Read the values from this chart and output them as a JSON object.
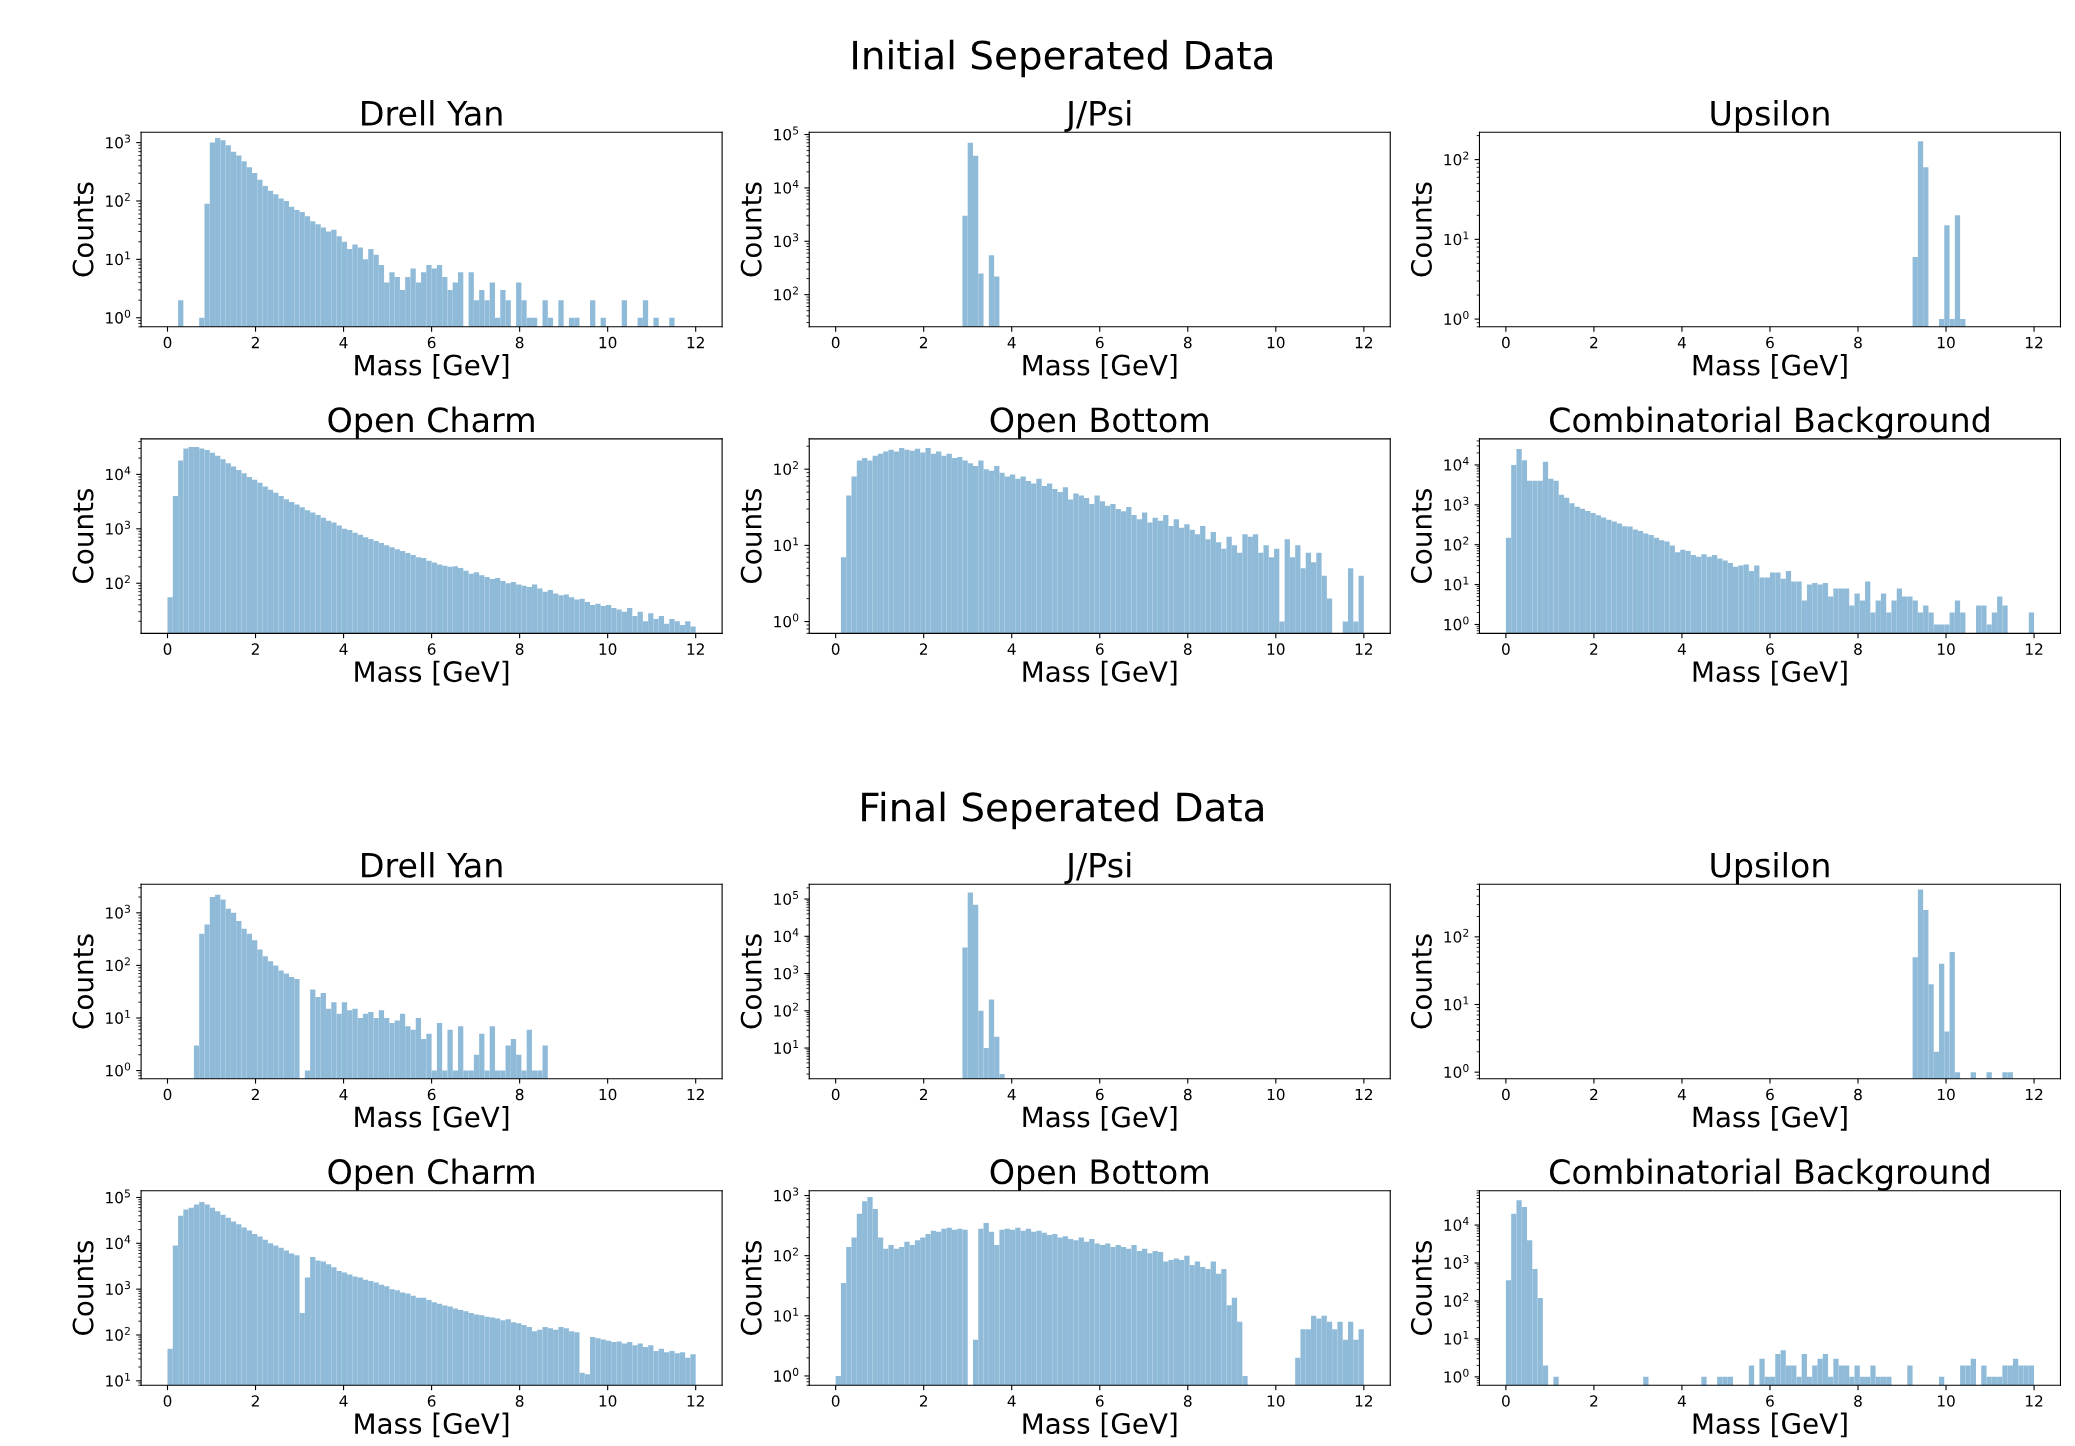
{
  "chart_data": [
    {
      "type": "histogram",
      "title": "Drell Yan",
      "xlabel": "Mass [GeV]",
      "ylabel": "Counts",
      "annotations": [
        "Initial Seperated Data"
      ],
      "color": "#8fbbd9",
      "log": "y",
      "xlim": [
        -0.6,
        12.6
      ],
      "xticks": [
        0,
        2,
        4,
        6,
        8,
        10,
        12
      ],
      "ylim": [
        0.7,
        1500
      ],
      "yticks": [
        {
          "value": 1,
          "label": "10$^{0}$"
        },
        {
          "value": 10,
          "label": "10$^{1}$"
        },
        {
          "value": 100,
          "label": "10$^{2}$"
        },
        {
          "value": 1000,
          "label": "10$^{3}$"
        }
      ],
      "bins": [
        0,
        0.12,
        0.24,
        0.36,
        0.48,
        0.6,
        0.72,
        0.84,
        0.96,
        1.08,
        1.2,
        1.32,
        1.44,
        1.56,
        1.68,
        1.8,
        1.92,
        2.04,
        2.16,
        2.28,
        2.4,
        2.52,
        2.64,
        2.76,
        2.88,
        3,
        3.12,
        3.24,
        3.36,
        3.48,
        3.6,
        3.72,
        3.84,
        3.96,
        4.08,
        4.2,
        4.32,
        4.44,
        4.56,
        4.68,
        4.8,
        4.92,
        5.04,
        5.16,
        5.28,
        5.4,
        5.52,
        5.64,
        5.76,
        5.88,
        6,
        6.12,
        6.24,
        6.36,
        6.48,
        6.6,
        6.72,
        6.84,
        6.96,
        7.08,
        7.2,
        7.32,
        7.44,
        7.56,
        7.68,
        7.8,
        7.92,
        8.04,
        8.16,
        8.28,
        8.4,
        8.52,
        8.64,
        8.76,
        8.88,
        9,
        9.12,
        9.24,
        9.36,
        9.48,
        9.6,
        9.72,
        9.84,
        9.96,
        10.08,
        10.2,
        10.32,
        10.44,
        10.56,
        10.68,
        10.8,
        10.92,
        11.04,
        11.16,
        11.28,
        11.4,
        11.52,
        11.64,
        11.76,
        11.88,
        12
      ],
      "values": [
        null,
        null,
        2,
        null,
        null,
        null,
        1,
        90,
        1000,
        1200,
        1100,
        900,
        700,
        600,
        480,
        380,
        300,
        230,
        180,
        150,
        130,
        110,
        100,
        80,
        70,
        65,
        55,
        45,
        40,
        35,
        30,
        32,
        25,
        20,
        15,
        18,
        16,
        10,
        15,
        12,
        8,
        4,
        6,
        5,
        3,
        5,
        7,
        4,
        6,
        8,
        7,
        8,
        5,
        3,
        4,
        6,
        null,
        6,
        2,
        3,
        2,
        4,
        1,
        3,
        2,
        null,
        4,
        2,
        1,
        1,
        null,
        2,
        1,
        null,
        2,
        null,
        1,
        1,
        null,
        null,
        2,
        null,
        1,
        null,
        null,
        null,
        2,
        null,
        null,
        1,
        2,
        null,
        1,
        null,
        null,
        1,
        null,
        null,
        null,
        null
      ]
    },
    {
      "type": "histogram",
      "title": "J/Psi",
      "xlabel": "Mass [GeV]",
      "ylabel": "Counts",
      "color": "#8fbbd9",
      "log": "y",
      "xlim": [
        -0.6,
        12.6
      ],
      "xticks": [
        0,
        2,
        4,
        6,
        8,
        10,
        12
      ],
      "ylim": [
        25,
        110000
      ],
      "yticks": [
        {
          "value": 100,
          "label": "10$^{2}$"
        },
        {
          "value": 1000,
          "label": "10$^{3}$"
        },
        {
          "value": 10000,
          "label": "10$^{4}$"
        },
        {
          "value": 100000,
          "label": "10$^{5}$"
        }
      ],
      "bins": [
        2.88,
        3,
        3.12,
        3.24,
        3.36,
        3.48,
        3.6,
        3.72
      ],
      "values": [
        3000,
        70000,
        40000,
        250,
        null,
        550,
        220
      ]
    },
    {
      "type": "histogram",
      "title": "Upsilon",
      "xlabel": "Mass [GeV]",
      "ylabel": "Counts",
      "color": "#8fbbd9",
      "log": "y",
      "xlim": [
        -0.6,
        12.6
      ],
      "xticks": [
        0,
        2,
        4,
        6,
        8,
        10,
        12
      ],
      "ylim": [
        0.8,
        220
      ],
      "yticks": [
        {
          "value": 1,
          "label": "10$^{0}$"
        },
        {
          "value": 10,
          "label": "10$^{1}$"
        },
        {
          "value": 100,
          "label": "10$^{2}$"
        }
      ],
      "bins": [
        9.24,
        9.36,
        9.48,
        9.6,
        9.72,
        9.84,
        9.96,
        10.08,
        10.2,
        10.32,
        10.44
      ],
      "values": [
        6,
        170,
        80,
        null,
        null,
        1,
        15,
        1,
        20,
        1
      ]
    },
    {
      "type": "histogram",
      "title": "Open Charm",
      "xlabel": "Mass [GeV]",
      "ylabel": "Counts",
      "color": "#8fbbd9",
      "log": "y",
      "xlim": [
        -0.6,
        12.6
      ],
      "xticks": [
        0,
        2,
        4,
        6,
        8,
        10,
        12
      ],
      "ylim": [
        12,
        45000
      ],
      "yticks": [
        {
          "value": 100,
          "label": "10$^{2}$"
        },
        {
          "value": 1000,
          "label": "10$^{3}$"
        },
        {
          "value": 10000,
          "label": "10$^{4}$"
        }
      ],
      "bins": [
        0,
        0.12,
        0.24,
        0.36,
        0.48,
        0.6,
        0.72,
        0.84,
        0.96,
        1.08,
        1.2,
        1.32,
        1.44,
        1.56,
        1.68,
        1.8,
        1.92,
        2.04,
        2.16,
        2.28,
        2.4,
        2.52,
        2.64,
        2.76,
        2.88,
        3,
        3.12,
        3.24,
        3.36,
        3.48,
        3.6,
        3.72,
        3.84,
        3.96,
        4.08,
        4.2,
        4.32,
        4.44,
        4.56,
        4.68,
        4.8,
        4.92,
        5.04,
        5.16,
        5.28,
        5.4,
        5.52,
        5.64,
        5.76,
        5.88,
        6,
        6.12,
        6.24,
        6.36,
        6.48,
        6.6,
        6.72,
        6.84,
        6.96,
        7.08,
        7.2,
        7.32,
        7.44,
        7.56,
        7.68,
        7.8,
        7.92,
        8.04,
        8.16,
        8.28,
        8.4,
        8.52,
        8.64,
        8.76,
        8.88,
        9,
        9.12,
        9.24,
        9.36,
        9.48,
        9.6,
        9.72,
        9.84,
        9.96,
        10.08,
        10.2,
        10.32,
        10.44,
        10.56,
        10.68,
        10.8,
        10.92,
        11.04,
        11.16,
        11.28,
        11.4,
        11.52,
        11.64,
        11.76,
        11.88,
        12
      ],
      "values": [
        55,
        4000,
        18000,
        30000,
        32000,
        32000,
        30000,
        28000,
        25000,
        22000,
        19000,
        16000,
        14000,
        12000,
        10500,
        9000,
        8000,
        7000,
        6000,
        5200,
        4600,
        4000,
        3500,
        3100,
        2800,
        2500,
        2200,
        2000,
        1800,
        1600,
        1400,
        1300,
        1150,
        1000,
        950,
        850,
        780,
        700,
        650,
        600,
        550,
        500,
        460,
        420,
        390,
        360,
        330,
        300,
        290,
        260,
        240,
        220,
        210,
        200,
        205,
        190,
        170,
        150,
        160,
        140,
        130,
        120,
        125,
        110,
        100,
        105,
        95,
        90,
        85,
        95,
        80,
        70,
        75,
        65,
        60,
        62,
        55,
        50,
        52,
        45,
        40,
        42,
        38,
        40,
        35,
        33,
        30,
        35,
        25,
        30,
        20,
        28,
        22,
        25,
        18,
        22,
        20,
        17,
        20,
        16
      ]
    },
    {
      "type": "histogram",
      "title": "Open Bottom",
      "xlabel": "Mass [GeV]",
      "ylabel": "Counts",
      "color": "#8fbbd9",
      "log": "y",
      "xlim": [
        -0.6,
        12.6
      ],
      "xticks": [
        0,
        2,
        4,
        6,
        8,
        10,
        12
      ],
      "ylim": [
        0.7,
        250
      ],
      "yticks": [
        {
          "value": 1,
          "label": "10$^{0}$"
        },
        {
          "value": 10,
          "label": "10$^{1}$"
        },
        {
          "value": 100,
          "label": "10$^{2}$"
        }
      ],
      "bins": [
        0,
        0.12,
        0.24,
        0.36,
        0.48,
        0.6,
        0.72,
        0.84,
        0.96,
        1.08,
        1.2,
        1.32,
        1.44,
        1.56,
        1.68,
        1.8,
        1.92,
        2.04,
        2.16,
        2.28,
        2.4,
        2.52,
        2.64,
        2.76,
        2.88,
        3,
        3.12,
        3.24,
        3.36,
        3.48,
        3.6,
        3.72,
        3.84,
        3.96,
        4.08,
        4.2,
        4.32,
        4.44,
        4.56,
        4.68,
        4.8,
        4.92,
        5.04,
        5.16,
        5.28,
        5.4,
        5.52,
        5.64,
        5.76,
        5.88,
        6,
        6.12,
        6.24,
        6.36,
        6.48,
        6.6,
        6.72,
        6.84,
        6.96,
        7.08,
        7.2,
        7.32,
        7.44,
        7.56,
        7.68,
        7.8,
        7.92,
        8.04,
        8.16,
        8.28,
        8.4,
        8.52,
        8.64,
        8.76,
        8.88,
        9,
        9.12,
        9.24,
        9.36,
        9.48,
        9.6,
        9.72,
        9.84,
        9.96,
        10.08,
        10.2,
        10.32,
        10.44,
        10.56,
        10.68,
        10.8,
        10.92,
        11.04,
        11.16,
        11.28,
        11.4,
        11.52,
        11.64,
        11.76,
        11.88,
        12
      ],
      "values": [
        null,
        7,
        45,
        80,
        130,
        140,
        130,
        150,
        160,
        170,
        180,
        170,
        190,
        180,
        175,
        185,
        165,
        190,
        160,
        170,
        150,
        160,
        140,
        145,
        130,
        120,
        110,
        130,
        100,
        95,
        110,
        90,
        80,
        85,
        75,
        80,
        70,
        65,
        75,
        60,
        65,
        55,
        50,
        58,
        40,
        48,
        45,
        42,
        35,
        45,
        38,
        33,
        35,
        30,
        28,
        32,
        25,
        22,
        27,
        20,
        23,
        21,
        25,
        18,
        22,
        17,
        19,
        16,
        14,
        18,
        12,
        15,
        11,
        9,
        13,
        10,
        8,
        14,
        13,
        14,
        8,
        10,
        7,
        9,
        1,
        12,
        7,
        10,
        5,
        8,
        6,
        8,
        4,
        2,
        null,
        null,
        1,
        5,
        1,
        4
      ]
    },
    {
      "type": "histogram",
      "title": "Combinatorial Background",
      "xlabel": "Mass [GeV]",
      "ylabel": "Counts",
      "color": "#8fbbd9",
      "log": "y",
      "xlim": [
        -0.6,
        12.6
      ],
      "xticks": [
        0,
        2,
        4,
        6,
        8,
        10,
        12
      ],
      "ylim": [
        0.6,
        45000
      ],
      "yticks": [
        {
          "value": 1,
          "label": "10$^{0}$"
        },
        {
          "value": 10,
          "label": "10$^{1}$"
        },
        {
          "value": 100,
          "label": "10$^{2}$"
        },
        {
          "value": 1000,
          "label": "10$^{3}$"
        },
        {
          "value": 10000,
          "label": "10$^{4}$"
        }
      ],
      "bins": [
        0,
        0.12,
        0.24,
        0.36,
        0.48,
        0.6,
        0.72,
        0.84,
        0.96,
        1.08,
        1.2,
        1.32,
        1.44,
        1.56,
        1.68,
        1.8,
        1.92,
        2.04,
        2.16,
        2.28,
        2.4,
        2.52,
        2.64,
        2.76,
        2.88,
        3,
        3.12,
        3.24,
        3.36,
        3.48,
        3.6,
        3.72,
        3.84,
        3.96,
        4.08,
        4.2,
        4.32,
        4.44,
        4.56,
        4.68,
        4.8,
        4.92,
        5.04,
        5.16,
        5.28,
        5.4,
        5.52,
        5.64,
        5.76,
        5.88,
        6,
        6.12,
        6.24,
        6.36,
        6.48,
        6.6,
        6.72,
        6.84,
        6.96,
        7.08,
        7.2,
        7.32,
        7.44,
        7.56,
        7.68,
        7.8,
        7.92,
        8.04,
        8.16,
        8.28,
        8.4,
        8.52,
        8.64,
        8.76,
        8.88,
        9,
        9.12,
        9.24,
        9.36,
        9.48,
        9.6,
        9.72,
        9.84,
        9.96,
        10.08,
        10.2,
        10.32,
        10.44,
        10.56,
        10.68,
        10.8,
        10.92,
        11.04,
        11.16,
        11.28,
        11.4,
        11.52,
        11.64,
        11.76,
        11.88,
        12
      ],
      "values": [
        150,
        10000,
        25000,
        13000,
        4000,
        4000,
        4000,
        12000,
        4500,
        4000,
        1800,
        1500,
        1100,
        900,
        800,
        700,
        620,
        550,
        480,
        420,
        380,
        340,
        290,
        285,
        240,
        220,
        190,
        175,
        150,
        130,
        120,
        95,
        65,
        75,
        70,
        55,
        50,
        58,
        50,
        55,
        45,
        40,
        35,
        28,
        30,
        32,
        22,
        30,
        15,
        15,
        20,
        20,
        14,
        22,
        12,
        12,
        4,
        10,
        11,
        10,
        11,
        5,
        8,
        8,
        8,
        3,
        6,
        4,
        12,
        2,
        4,
        6,
        2,
        4,
        8,
        5,
        5,
        4,
        2,
        3,
        2,
        1,
        1,
        1,
        2,
        4,
        2,
        null,
        null,
        3,
        3,
        1,
        2,
        5,
        3,
        null,
        null,
        null,
        null,
        2
      ]
    },
    {
      "type": "histogram",
      "title": "Drell Yan",
      "xlabel": "Mass [GeV]",
      "ylabel": "Counts",
      "annotations": [
        "Final Seperated Data"
      ],
      "color": "#8fbbd9",
      "log": "y",
      "xlim": [
        -0.6,
        12.6
      ],
      "xticks": [
        0,
        2,
        4,
        6,
        8,
        10,
        12
      ],
      "ylim": [
        0.7,
        3500
      ],
      "yticks": [
        {
          "value": 1,
          "label": "10$^{0}$"
        },
        {
          "value": 10,
          "label": "10$^{1}$"
        },
        {
          "value": 100,
          "label": "10$^{2}$"
        },
        {
          "value": 1000,
          "label": "10$^{3}$"
        }
      ],
      "bins": [
        0,
        0.12,
        0.24,
        0.36,
        0.48,
        0.6,
        0.72,
        0.84,
        0.96,
        1.08,
        1.2,
        1.32,
        1.44,
        1.56,
        1.68,
        1.8,
        1.92,
        2.04,
        2.16,
        2.28,
        2.4,
        2.52,
        2.64,
        2.76,
        2.88,
        3,
        3.12,
        3.24,
        3.36,
        3.48,
        3.6,
        3.72,
        3.84,
        3.96,
        4.08,
        4.2,
        4.32,
        4.44,
        4.56,
        4.68,
        4.8,
        4.92,
        5.04,
        5.16,
        5.28,
        5.4,
        5.52,
        5.64,
        5.76,
        5.88,
        6,
        6.12,
        6.24,
        6.36,
        6.48,
        6.6,
        6.72,
        6.84,
        6.96,
        7.08,
        7.2,
        7.32,
        7.44,
        7.56,
        7.68,
        7.8,
        7.92,
        8.04,
        8.16,
        8.28,
        8.4,
        8.52,
        8.64,
        8.76,
        8.88,
        9,
        9.12,
        9.24,
        9.36,
        9.48,
        9.6,
        9.72,
        9.84,
        9.96,
        10.08,
        10.2,
        10.32,
        10.44,
        10.56,
        10.68,
        10.8,
        10.92,
        11.04,
        11.16,
        11.28,
        11.4,
        11.52,
        11.64,
        11.76,
        11.88,
        12
      ],
      "values": [
        null,
        null,
        null,
        null,
        null,
        3,
        400,
        600,
        2000,
        2200,
        1800,
        1200,
        1000,
        700,
        500,
        400,
        300,
        200,
        150,
        120,
        100,
        80,
        70,
        60,
        55,
        null,
        1,
        35,
        25,
        30,
        15,
        20,
        12,
        20,
        14,
        15,
        10,
        12,
        13,
        10,
        14,
        10,
        8,
        9,
        12,
        7,
        6,
        10,
        4,
        5,
        1,
        8,
        1,
        6,
        1,
        7,
        1,
        1,
        2,
        5,
        1,
        7,
        1,
        1,
        3,
        4,
        2,
        1,
        6,
        1,
        1,
        3,
        null,
        null,
        null,
        null,
        null,
        null,
        null,
        null,
        null,
        null,
        null,
        null,
        null,
        null,
        null,
        null,
        null,
        null,
        null,
        null,
        null,
        null,
        null,
        null,
        null,
        null,
        null,
        null
      ]
    },
    {
      "type": "histogram",
      "title": "J/Psi",
      "xlabel": "Mass [GeV]",
      "ylabel": "Counts",
      "color": "#8fbbd9",
      "log": "y",
      "xlim": [
        -0.6,
        12.6
      ],
      "xticks": [
        0,
        2,
        4,
        6,
        8,
        10,
        12
      ],
      "ylim": [
        1.5,
        250000
      ],
      "yticks": [
        {
          "value": 10,
          "label": "10$^{1}$"
        },
        {
          "value": 100,
          "label": "10$^{2}$"
        },
        {
          "value": 1000,
          "label": "10$^{3}$"
        },
        {
          "value": 10000,
          "label": "10$^{4}$"
        },
        {
          "value": 100000,
          "label": "10$^{5}$"
        }
      ],
      "bins": [
        2.88,
        3,
        3.12,
        3.24,
        3.36,
        3.48,
        3.6,
        3.72,
        3.84
      ],
      "values": [
        5000,
        150000,
        70000,
        100,
        10,
        200,
        20,
        2
      ]
    },
    {
      "type": "histogram",
      "title": "Upsilon",
      "xlabel": "Mass [GeV]",
      "ylabel": "Counts",
      "color": "#8fbbd9",
      "log": "y",
      "xlim": [
        -0.6,
        12.6
      ],
      "xticks": [
        0,
        2,
        4,
        6,
        8,
        10,
        12
      ],
      "ylim": [
        0.8,
        600
      ],
      "yticks": [
        {
          "value": 1,
          "label": "10$^{0}$"
        },
        {
          "value": 10,
          "label": "10$^{1}$"
        },
        {
          "value": 100,
          "label": "10$^{2}$"
        }
      ],
      "bins": [
        9.24,
        9.36,
        9.48,
        9.6,
        9.72,
        9.84,
        9.96,
        10.08,
        10.2,
        10.32,
        10.44,
        10.56,
        10.68,
        10.8,
        10.92,
        11.04,
        11.16,
        11.28,
        11.4,
        11.52,
        11.64
      ],
      "values": [
        50,
        500,
        250,
        20,
        2,
        40,
        4,
        60,
        1,
        null,
        null,
        1,
        null,
        null,
        1,
        null,
        null,
        1,
        1,
        null
      ]
    },
    {
      "type": "histogram",
      "title": "Open Charm",
      "xlabel": "Mass [GeV]",
      "ylabel": "Counts",
      "color": "#8fbbd9",
      "log": "y",
      "xlim": [
        -0.6,
        12.6
      ],
      "xticks": [
        0,
        2,
        4,
        6,
        8,
        10,
        12
      ],
      "ylim": [
        8,
        140000
      ],
      "yticks": [
        {
          "value": 10,
          "label": "10$^{1}$"
        },
        {
          "value": 100,
          "label": "10$^{2}$"
        },
        {
          "value": 1000,
          "label": "10$^{3}$"
        },
        {
          "value": 10000,
          "label": "10$^{4}$"
        },
        {
          "value": 100000,
          "label": "10$^{5}$"
        }
      ],
      "bins": [
        0,
        0.12,
        0.24,
        0.36,
        0.48,
        0.6,
        0.72,
        0.84,
        0.96,
        1.08,
        1.2,
        1.32,
        1.44,
        1.56,
        1.68,
        1.8,
        1.92,
        2.04,
        2.16,
        2.28,
        2.4,
        2.52,
        2.64,
        2.76,
        2.88,
        3,
        3.12,
        3.24,
        3.36,
        3.48,
        3.6,
        3.72,
        3.84,
        3.96,
        4.08,
        4.2,
        4.32,
        4.44,
        4.56,
        4.68,
        4.8,
        4.92,
        5.04,
        5.16,
        5.28,
        5.4,
        5.52,
        5.64,
        5.76,
        5.88,
        6,
        6.12,
        6.24,
        6.36,
        6.48,
        6.6,
        6.72,
        6.84,
        6.96,
        7.08,
        7.2,
        7.32,
        7.44,
        7.56,
        7.68,
        7.8,
        7.92,
        8.04,
        8.16,
        8.28,
        8.4,
        8.52,
        8.64,
        8.76,
        8.88,
        9,
        9.12,
        9.24,
        9.36,
        9.48,
        9.6,
        9.72,
        9.84,
        9.96,
        10.08,
        10.2,
        10.32,
        10.44,
        10.56,
        10.68,
        10.8,
        10.92,
        11.04,
        11.16,
        11.28,
        11.4,
        11.52,
        11.64,
        11.76,
        11.88,
        12
      ],
      "values": [
        50,
        9000,
        40000,
        55000,
        60000,
        70000,
        80000,
        70000,
        60000,
        50000,
        42000,
        36000,
        30000,
        26000,
        22000,
        19000,
        16000,
        14000,
        12000,
        10000,
        9000,
        8000,
        7000,
        6000,
        5500,
        300,
        1800,
        5000,
        4200,
        4000,
        3500,
        3000,
        2500,
        2300,
        2100,
        1900,
        1800,
        1600,
        1500,
        1400,
        1250,
        1150,
        1000,
        950,
        850,
        800,
        720,
        650,
        650,
        580,
        520,
        480,
        440,
        420,
        380,
        350,
        330,
        300,
        280,
        270,
        250,
        240,
        230,
        210,
        220,
        190,
        180,
        165,
        150,
        120,
        130,
        150,
        140,
        130,
        150,
        140,
        120,
        115,
        15,
        14,
        90,
        85,
        80,
        75,
        70,
        72,
        65,
        70,
        60,
        65,
        55,
        60,
        45,
        50,
        42,
        45,
        40,
        42,
        32,
        38
      ]
    },
    {
      "type": "histogram",
      "title": "Open Bottom",
      "xlabel": "Mass [GeV]",
      "ylabel": "Counts",
      "color": "#8fbbd9",
      "log": "y",
      "xlim": [
        -0.6,
        12.6
      ],
      "xticks": [
        0,
        2,
        4,
        6,
        8,
        10,
        12
      ],
      "ylim": [
        0.7,
        1200
      ],
      "yticks": [
        {
          "value": 1,
          "label": "10$^{0}$"
        },
        {
          "value": 10,
          "label": "10$^{1}$"
        },
        {
          "value": 100,
          "label": "10$^{2}$"
        },
        {
          "value": 1000,
          "label": "10$^{3}$"
        }
      ],
      "bins": [
        0,
        0.12,
        0.24,
        0.36,
        0.48,
        0.6,
        0.72,
        0.84,
        0.96,
        1.08,
        1.2,
        1.32,
        1.44,
        1.56,
        1.68,
        1.8,
        1.92,
        2.04,
        2.16,
        2.28,
        2.4,
        2.52,
        2.64,
        2.76,
        2.88,
        3,
        3.12,
        3.24,
        3.36,
        3.48,
        3.6,
        3.72,
        3.84,
        3.96,
        4.08,
        4.2,
        4.32,
        4.44,
        4.56,
        4.68,
        4.8,
        4.92,
        5.04,
        5.16,
        5.28,
        5.4,
        5.52,
        5.64,
        5.76,
        5.88,
        6,
        6.12,
        6.24,
        6.36,
        6.48,
        6.6,
        6.72,
        6.84,
        6.96,
        7.08,
        7.2,
        7.32,
        7.44,
        7.56,
        7.68,
        7.8,
        7.92,
        8.04,
        8.16,
        8.28,
        8.4,
        8.52,
        8.64,
        8.76,
        8.88,
        9,
        9.12,
        9.24,
        9.36,
        9.48,
        9.6,
        9.72,
        9.84,
        9.96,
        10.08,
        10.2,
        10.32,
        10.44,
        10.56,
        10.68,
        10.8,
        10.92,
        11.04,
        11.16,
        11.28,
        11.4,
        11.52,
        11.64,
        11.76,
        11.88,
        12
      ],
      "values": [
        1,
        35,
        140,
        200,
        500,
        800,
        950,
        600,
        200,
        130,
        150,
        130,
        140,
        170,
        150,
        180,
        200,
        230,
        260,
        250,
        280,
        290,
        270,
        280,
        270,
        null,
        4,
        280,
        350,
        250,
        150,
        270,
        280,
        270,
        290,
        260,
        280,
        250,
        260,
        240,
        220,
        230,
        200,
        210,
        190,
        180,
        200,
        170,
        190,
        160,
        150,
        160,
        140,
        150,
        140,
        130,
        150,
        120,
        130,
        110,
        120,
        115,
        80,
        85,
        90,
        85,
        100,
        70,
        80,
        65,
        60,
        80,
        50,
        60,
        15,
        20,
        8,
        1,
        null,
        null,
        null,
        null,
        null,
        null,
        null,
        null,
        null,
        2,
        6,
        6,
        10,
        9,
        10,
        8,
        6,
        8,
        4,
        8,
        4,
        6
      ]
    },
    {
      "type": "histogram",
      "title": "Combinatorial Background",
      "xlabel": "Mass [GeV]",
      "ylabel": "Counts",
      "color": "#8fbbd9",
      "log": "y",
      "xlim": [
        -0.6,
        12.6
      ],
      "xticks": [
        0,
        2,
        4,
        6,
        8,
        10,
        12
      ],
      "ylim": [
        0.6,
        80000
      ],
      "yticks": [
        {
          "value": 1,
          "label": "10$^{0}$"
        },
        {
          "value": 10,
          "label": "10$^{1}$"
        },
        {
          "value": 100,
          "label": "10$^{2}$"
        },
        {
          "value": 1000,
          "label": "10$^{3}$"
        },
        {
          "value": 10000,
          "label": "10$^{4}$"
        }
      ],
      "bins": [
        0,
        0.12,
        0.24,
        0.36,
        0.48,
        0.6,
        0.72,
        0.84,
        0.96,
        1.08,
        1.2,
        1.32,
        1.44,
        1.56,
        1.68,
        1.8,
        1.92,
        2.04,
        2.16,
        2.28,
        2.4,
        2.52,
        2.64,
        2.76,
        2.88,
        3,
        3.12,
        3.24,
        3.36,
        3.48,
        3.6,
        3.72,
        3.84,
        3.96,
        4.08,
        4.2,
        4.32,
        4.44,
        4.56,
        4.68,
        4.8,
        4.92,
        5.04,
        5.16,
        5.28,
        5.4,
        5.52,
        5.64,
        5.76,
        5.88,
        6,
        6.12,
        6.24,
        6.36,
        6.48,
        6.6,
        6.72,
        6.84,
        6.96,
        7.08,
        7.2,
        7.32,
        7.44,
        7.56,
        7.68,
        7.8,
        7.92,
        8.04,
        8.16,
        8.28,
        8.4,
        8.52,
        8.64,
        8.76,
        8.88,
        9,
        9.12,
        9.24,
        9.36,
        9.48,
        9.6,
        9.72,
        9.84,
        9.96,
        10.08,
        10.2,
        10.32,
        10.44,
        10.56,
        10.68,
        10.8,
        10.92,
        11.04,
        11.16,
        11.28,
        11.4,
        11.52,
        11.64,
        11.76,
        11.88,
        12
      ],
      "values": [
        350,
        20000,
        45000,
        30000,
        4000,
        700,
        120,
        2,
        null,
        1,
        null,
        null,
        null,
        null,
        null,
        null,
        null,
        null,
        null,
        null,
        null,
        null,
        null,
        null,
        null,
        null,
        1,
        null,
        null,
        null,
        null,
        null,
        null,
        null,
        null,
        null,
        null,
        1,
        null,
        null,
        1,
        1,
        1,
        null,
        null,
        null,
        2,
        null,
        3,
        1,
        1,
        4,
        5,
        2,
        2,
        1,
        4,
        1,
        2,
        3,
        4,
        1,
        3,
        2,
        2,
        1,
        2,
        1,
        1,
        2,
        1,
        1,
        1,
        null,
        null,
        null,
        2,
        null,
        null,
        null,
        null,
        null,
        1,
        null,
        null,
        null,
        2,
        2,
        3,
        null,
        2,
        1,
        1,
        1,
        2,
        2,
        3,
        2,
        2,
        2
      ]
    }
  ]
}
